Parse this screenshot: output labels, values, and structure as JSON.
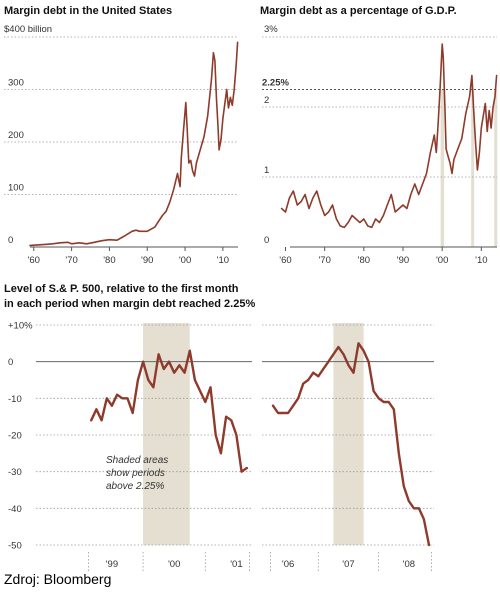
{
  "colors": {
    "series": "#8e3b2c",
    "shade": "#e4dfd1",
    "grid": "#9a9a9a"
  },
  "source_text": "Zdroj: Bloomberg",
  "chart_data": [
    {
      "id": "margin-debt",
      "type": "line",
      "title": "Margin debt in the United States",
      "xlim": [
        1959,
        2014
      ],
      "ylim": [
        0,
        400
      ],
      "y_ticks": [
        0,
        100,
        200,
        300
      ],
      "y_tick_labels": [
        "0",
        "100",
        "200",
        "300"
      ],
      "y_top_label": "$400 billion",
      "x_ticks": [
        1960,
        1970,
        1980,
        1990,
        2000,
        2010
      ],
      "x_tick_labels": [
        "'60",
        "'70",
        "'80",
        "'90",
        "'00",
        "'10"
      ],
      "grid": true,
      "series": [
        {
          "x": [
            1959,
            1961,
            1963,
            1965,
            1967,
            1969,
            1970,
            1972,
            1974,
            1976,
            1978,
            1980,
            1982,
            1984,
            1986,
            1987,
            1988,
            1990,
            1992,
            1994,
            1995,
            1996,
            1997,
            1998,
            1998.7,
            1999,
            1999.5,
            2000.2,
            2000.6,
            2001,
            2001.5,
            2002,
            2002.5,
            2003,
            2004,
            2005,
            2006,
            2007,
            2007.5,
            2007.9,
            2008.3,
            2008.7,
            2009,
            2009.5,
            2010,
            2011,
            2011.5,
            2012,
            2012.5,
            2013,
            2013.5,
            2013.9
          ],
          "y": [
            3,
            4,
            5,
            6,
            8,
            9,
            6,
            8,
            6,
            9,
            12,
            14,
            13,
            21,
            30,
            32,
            30,
            30,
            38,
            60,
            68,
            86,
            110,
            140,
            115,
            170,
            215,
            275,
            220,
            160,
            165,
            145,
            135,
            160,
            185,
            210,
            250,
            320,
            370,
            355,
            285,
            230,
            185,
            205,
            245,
            300,
            265,
            285,
            270,
            300,
            345,
            390
          ]
        }
      ]
    },
    {
      "id": "margin-debt-gdp",
      "type": "line",
      "title": "Margin debt as a percentage of G.D.P.",
      "xlim": [
        1954,
        2014
      ],
      "ylim": [
        0,
        3
      ],
      "y_ticks": [
        0,
        1,
        2
      ],
      "y_tick_labels": [
        "0",
        "1",
        "2"
      ],
      "y_top_label": "3%",
      "reference_line": {
        "value": 2.25,
        "label": "2.25%"
      },
      "x_ticks": [
        1960,
        1970,
        1980,
        1990,
        2000,
        2010
      ],
      "x_tick_labels": [
        "'60",
        "'70",
        "'80",
        "'90",
        "'00",
        "'10"
      ],
      "shaded_ranges": [
        [
          1999.6,
          2000.5
        ],
        [
          2007.4,
          2007.9
        ],
        [
          2013.3,
          2014
        ]
      ],
      "grid": true,
      "series": [
        {
          "x": [
            1959,
            1960,
            1961,
            1962,
            1963,
            1964,
            1965,
            1966,
            1967,
            1968,
            1969,
            1970,
            1971,
            1972,
            1973,
            1974,
            1975,
            1976,
            1977,
            1978,
            1979,
            1980,
            1981,
            1982,
            1983,
            1984,
            1985,
            1986,
            1987,
            1988,
            1989,
            1990,
            1991,
            1992,
            1993,
            1994,
            1995,
            1996,
            1997,
            1998,
            1998.5,
            1999,
            1999.5,
            2000,
            2000.3,
            2000.7,
            2001,
            2001.5,
            2002,
            2002.5,
            2003,
            2004,
            2005,
            2006,
            2007,
            2007.6,
            2008,
            2008.5,
            2009,
            2009.5,
            2010,
            2011,
            2011.5,
            2012,
            2012.5,
            2013,
            2013.5,
            2013.9
          ],
          "y": [
            0.55,
            0.5,
            0.7,
            0.8,
            0.6,
            0.65,
            0.75,
            0.55,
            0.7,
            0.8,
            0.6,
            0.45,
            0.5,
            0.6,
            0.4,
            0.3,
            0.28,
            0.35,
            0.45,
            0.4,
            0.35,
            0.4,
            0.3,
            0.28,
            0.4,
            0.35,
            0.45,
            0.6,
            0.75,
            0.5,
            0.55,
            0.6,
            0.55,
            0.75,
            0.9,
            0.75,
            0.9,
            1.05,
            1.35,
            1.6,
            1.35,
            1.8,
            2.3,
            2.9,
            2.7,
            2.0,
            1.4,
            1.3,
            1.2,
            1.05,
            1.25,
            1.4,
            1.55,
            1.9,
            2.15,
            2.45,
            2.0,
            1.5,
            1.1,
            1.35,
            1.7,
            2.05,
            1.65,
            1.95,
            1.7,
            2.0,
            2.15,
            2.45
          ]
        }
      ]
    },
    {
      "id": "sp500-1999",
      "type": "line",
      "title": "Level of S.& P. 500, relative to the first month in each period when margin debt reached 2.25%",
      "ylim": [
        -50,
        10
      ],
      "y_ticks": [
        10,
        0,
        -10,
        -20,
        -30,
        -40,
        -50
      ],
      "y_tick_labels": [
        "+10%",
        "0",
        "-10",
        "-20",
        "-30",
        "-40",
        "-50"
      ],
      "x_tick_labels": [
        "'99",
        "'00",
        "'01"
      ],
      "x_tick_values": [
        3,
        15,
        27
      ],
      "xlim": [
        -2,
        30
      ],
      "shaded_range": [
        9,
        18
      ],
      "annotation": "Shaded areas show periods above 2.25%",
      "series": [
        {
          "x": [
            -1,
            0,
            1,
            2,
            3,
            4,
            5,
            6,
            7,
            8,
            9,
            10,
            11,
            12,
            13,
            14,
            15,
            16,
            17,
            18,
            19,
            20,
            21,
            22,
            23,
            24,
            25,
            26,
            27,
            28,
            29
          ],
          "y": [
            -16,
            -13,
            -16,
            -10,
            -12,
            -9,
            -10,
            -10,
            -14,
            -5,
            0,
            -5,
            -7,
            2,
            -2,
            0,
            -3,
            -1,
            -3,
            3,
            -5,
            -8,
            -11,
            -7,
            -20,
            -25,
            -15,
            -16,
            -20,
            -30,
            -29
          ]
        }
      ]
    },
    {
      "id": "sp500-2007",
      "type": "line",
      "xlim": [
        -1,
        32
      ],
      "ylim": [
        -50,
        10
      ],
      "x_tick_labels": [
        "'06",
        "'07",
        "'08"
      ],
      "x_tick_values": [
        3,
        15,
        27
      ],
      "shaded_range": [
        12,
        18
      ],
      "series": [
        {
          "x": [
            0,
            1,
            2,
            3,
            4,
            5,
            6,
            7,
            8,
            9,
            10,
            11,
            12,
            13,
            14,
            15,
            16,
            17,
            18,
            19,
            20,
            21,
            22,
            23,
            24,
            25,
            26,
            27,
            28,
            29,
            30,
            31
          ],
          "y": [
            -12,
            -14,
            -14,
            -14,
            -12,
            -10,
            -6,
            -5,
            -3,
            -4,
            -2,
            0,
            2,
            4,
            2,
            -1,
            -3,
            5,
            3,
            0,
            -8,
            -10,
            -11,
            -11,
            -13,
            -25,
            -34,
            -38,
            -40,
            -40,
            -43,
            -50
          ]
        }
      ]
    }
  ]
}
